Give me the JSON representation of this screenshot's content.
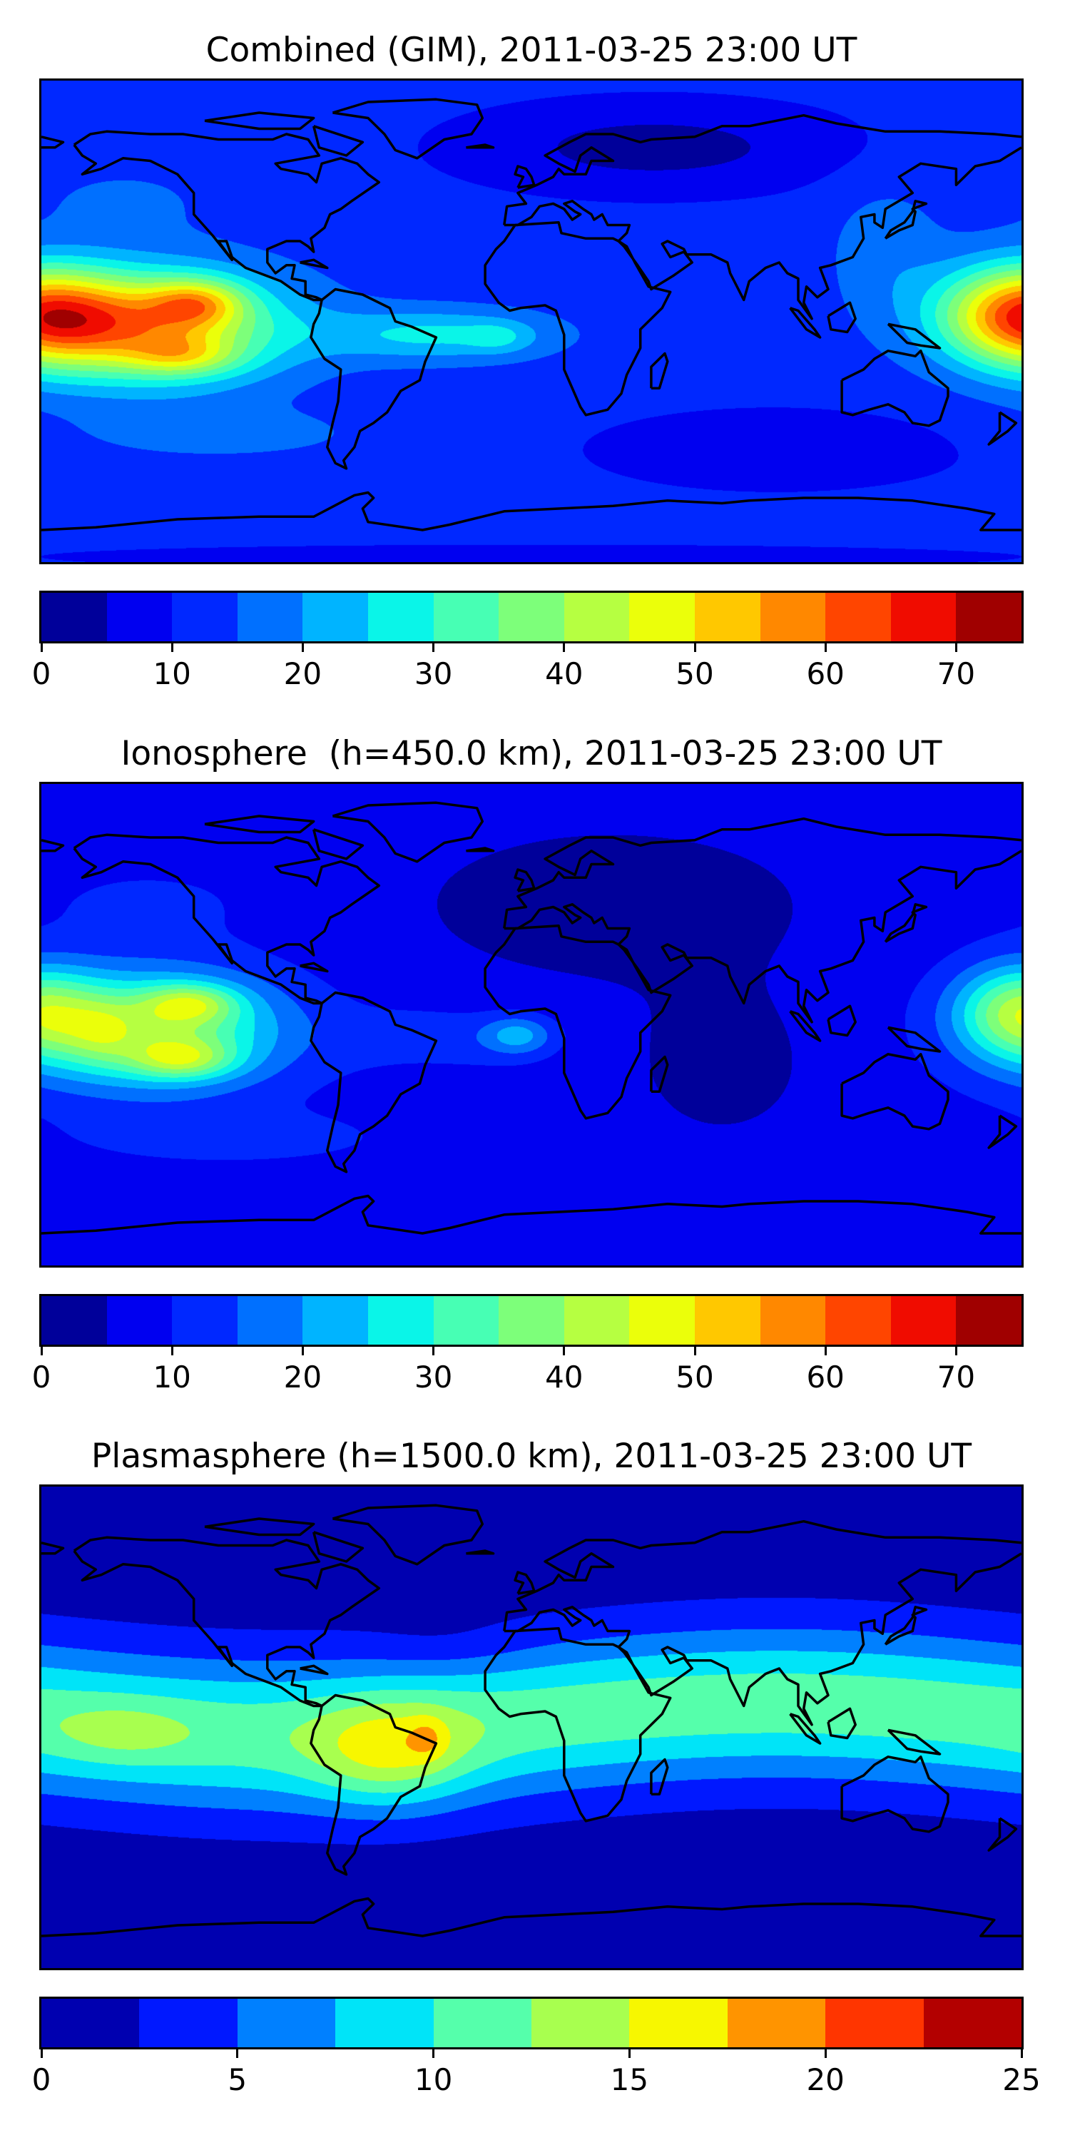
{
  "chart_data": [
    {
      "type": "heatmap",
      "subtype": "filled-contour-map",
      "title": "Combined (GIM), 2011-03-25 23:00 UT",
      "projection": "equirectangular",
      "lon_range": [
        -180,
        180
      ],
      "lat_range": [
        -90,
        90
      ],
      "levels_min": 0,
      "levels_max": 75,
      "level_step": 5,
      "colors": [
        "#00009a",
        "#0000f0",
        "#0028ff",
        "#0070ff",
        "#00b4ff",
        "#0af5e8",
        "#47ffb4",
        "#7dff7a",
        "#b6ff41",
        "#ebff0a",
        "#ffc800",
        "#ff8800",
        "#ff4500",
        "#f00c00",
        "#a00000"
      ],
      "colorbar_ticks": [
        "0",
        "10",
        "20",
        "30",
        "40",
        "50",
        "60",
        "70"
      ],
      "colorbar_tick_values": [
        0,
        10,
        20,
        30,
        40,
        50,
        60,
        70
      ],
      "features": [
        {
          "region": "eastern Pacific (lon -160..-110, lat -15..10)",
          "peak_value": 67
        },
        {
          "region": "western Pacific near date line",
          "peak_value": 48
        },
        {
          "region": "equatorial Atlantic",
          "peak_value": 30
        },
        {
          "region": "Europe / North Atlantic / Russia",
          "min_value": 3
        },
        {
          "region": "southern Indian Ocean",
          "min_value": 4
        }
      ]
    },
    {
      "type": "heatmap",
      "subtype": "filled-contour-map",
      "title": "Ionosphere  (h=450.0 km), 2011-03-25 23:00 UT",
      "projection": "equirectangular",
      "lon_range": [
        -180,
        180
      ],
      "lat_range": [
        -90,
        90
      ],
      "levels_min": 0,
      "levels_max": 75,
      "level_step": 5,
      "colors": [
        "#00009a",
        "#0000f0",
        "#0028ff",
        "#0070ff",
        "#00b4ff",
        "#0af5e8",
        "#47ffb4",
        "#7dff7a",
        "#b6ff41",
        "#ebff0a",
        "#ffc800",
        "#ff8800",
        "#ff4500",
        "#f00c00",
        "#a00000"
      ],
      "colorbar_ticks": [
        "0",
        "10",
        "20",
        "30",
        "40",
        "50",
        "60",
        "70"
      ],
      "colorbar_tick_values": [
        0,
        10,
        20,
        30,
        40,
        50,
        60,
        70
      ],
      "features": [
        {
          "region": "eastern Pacific (lon -160..-110, lat -15..10)",
          "peak_value": 57
        },
        {
          "region": "western Pacific near date line",
          "peak_value": 34
        },
        {
          "region": "equatorial Atlantic off Africa",
          "peak_value": 22
        },
        {
          "region": "Eurasia / Africa / Indian Ocean",
          "min_value": 2
        }
      ]
    },
    {
      "type": "heatmap",
      "subtype": "filled-contour-map",
      "title": "Plasmasphere (h=1500.0 km), 2011-03-25 23:00 UT",
      "projection": "equirectangular",
      "lon_range": [
        -180,
        180
      ],
      "lat_range": [
        -90,
        90
      ],
      "levels_min": 0,
      "levels_max": 25,
      "level_step": 2.5,
      "colors": [
        "#0000b0",
        "#0018ff",
        "#0080ff",
        "#00e4f8",
        "#55ffab",
        "#a8ff4f",
        "#f7f700",
        "#ff9400",
        "#ff3500",
        "#b30000"
      ],
      "colorbar_ticks": [
        "0",
        "5",
        "10",
        "15",
        "20",
        "25"
      ],
      "colorbar_tick_values": [
        0,
        5,
        10,
        15,
        20,
        25
      ],
      "features": [
        {
          "region": "eastern Brazil / South Atlantic",
          "peak_value": 18
        },
        {
          "region": "South America",
          "peak_value": 16
        },
        {
          "region": "equatorial band",
          "typical_value": 11
        },
        {
          "region": "high latitudes",
          "typical_value": 1.5
        }
      ]
    }
  ]
}
